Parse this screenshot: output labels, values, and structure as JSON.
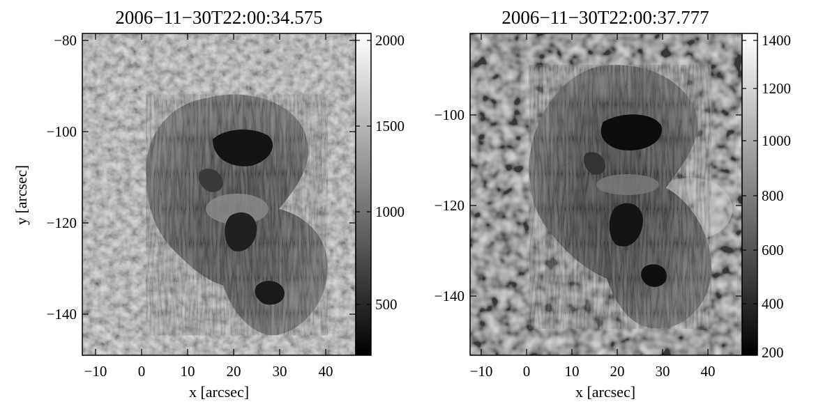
{
  "panels": [
    {
      "title": "2006−11−30T22:00:34.575",
      "xlabel": "x [arcsec]",
      "ylabel": "y [arcsec]",
      "xticks": [
        "−10",
        "0",
        "10",
        "20",
        "30",
        "40"
      ],
      "yticks": [
        "−80",
        "−100",
        "−120",
        "−140"
      ],
      "colorbar_ticks": [
        "2000",
        "1500",
        "1000",
        "500"
      ]
    },
    {
      "title": "2006−11−30T22:00:37.777",
      "xlabel": "x [arcsec]",
      "ylabel": "",
      "xticks": [
        "−10",
        "0",
        "10",
        "20",
        "30",
        "40"
      ],
      "yticks": [
        "−100",
        "−120",
        "−140"
      ],
      "colorbar_ticks": [
        "1400",
        "1200",
        "1000",
        "800",
        "600",
        "400",
        "200"
      ]
    }
  ]
}
